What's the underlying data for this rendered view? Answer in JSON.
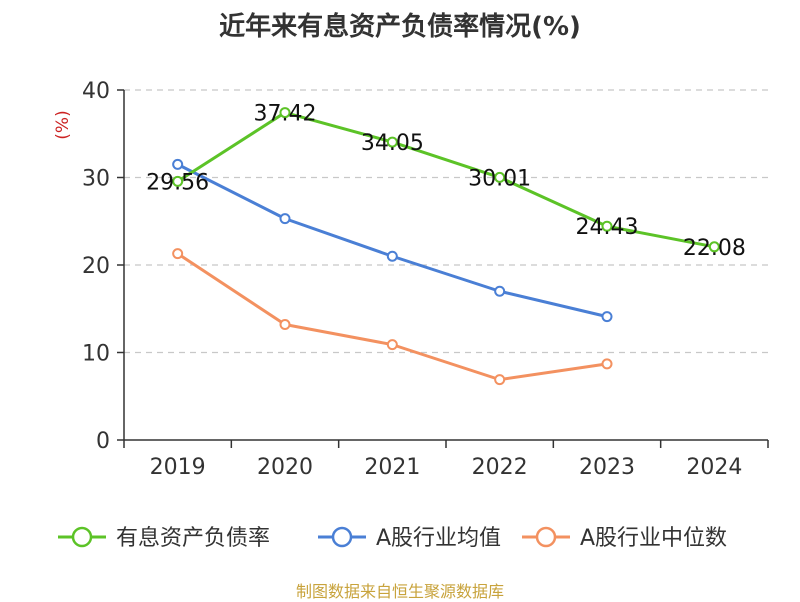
{
  "page": {
    "title": "近年来有息资产负债率情况(%)",
    "source": "制图数据来自恒生聚源数据库"
  },
  "chart_data": {
    "type": "line",
    "title": "近年来有息资产负债率情况(%)",
    "ylabel": "(%)",
    "xlabel": "",
    "ylim": [
      0,
      40
    ],
    "yticks": [
      0,
      10,
      20,
      30,
      40
    ],
    "categories": [
      "2019",
      "2020",
      "2021",
      "2022",
      "2023",
      "2024"
    ],
    "grid": true,
    "legend_position": "bottom",
    "series": [
      {
        "name": "有息资产负债率",
        "color": "#5cc327",
        "values": [
          29.56,
          37.42,
          34.05,
          30.01,
          24.43,
          22.08
        ],
        "labels": [
          "29.56",
          "37.42",
          "34.05",
          "30.01",
          "24.43",
          "22.08"
        ],
        "show_labels": true
      },
      {
        "name": "A股行业均值",
        "color": "#4a7fd5",
        "values": [
          31.5,
          25.3,
          21.0,
          17.0,
          14.1,
          null
        ],
        "show_labels": false
      },
      {
        "name": "A股行业中位数",
        "color": "#f39160",
        "values": [
          21.3,
          13.2,
          10.9,
          6.9,
          8.7,
          null
        ],
        "show_labels": false
      }
    ]
  }
}
